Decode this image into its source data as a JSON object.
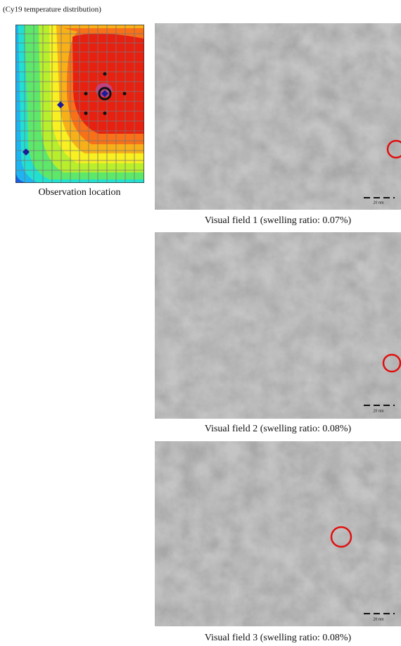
{
  "header": {
    "title": "(Cy19 temperature distribution)"
  },
  "map": {
    "caption": "Observation location"
  },
  "fields": [
    {
      "caption": "Visual field 1 (swelling ratio: 0.07%)",
      "scale": "20 nm"
    },
    {
      "caption": "Visual field 2 (swelling ratio: 0.08%)",
      "scale": "20 nm"
    },
    {
      "caption": "Visual field 3 (swelling ratio: 0.08%)",
      "scale": "20 nm"
    }
  ]
}
